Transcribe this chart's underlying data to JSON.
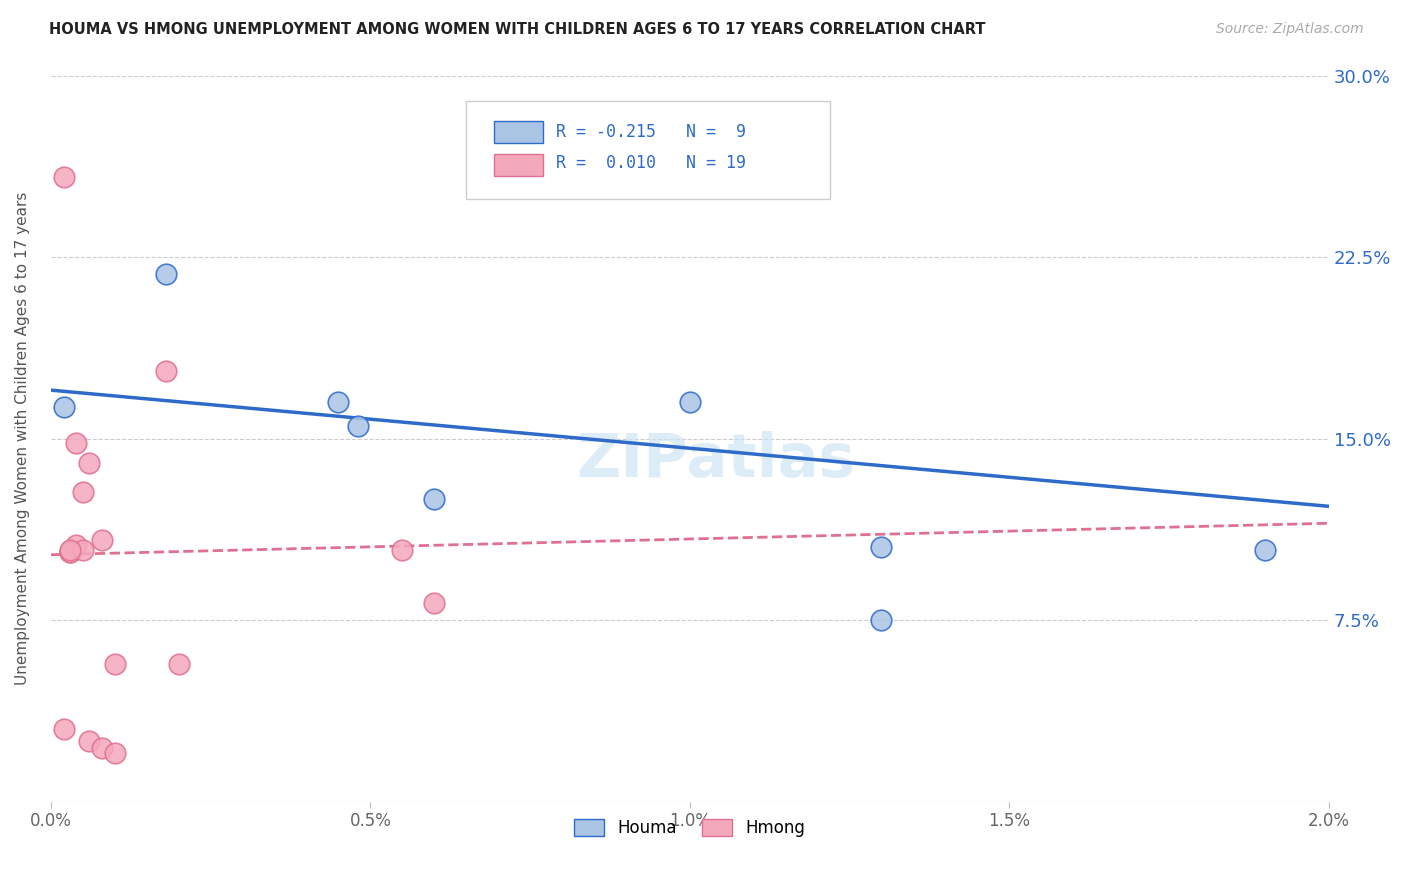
{
  "title": "HOUMA VS HMONG UNEMPLOYMENT AMONG WOMEN WITH CHILDREN AGES 6 TO 17 YEARS CORRELATION CHART",
  "source": "Source: ZipAtlas.com",
  "ylabel": "Unemployment Among Women with Children Ages 6 to 17 years",
  "xmin": 0.0,
  "xmax": 0.02,
  "ymin": 0.0,
  "ymax": 0.3,
  "xtick_labels": [
    "0.0%",
    "0.5%",
    "1.0%",
    "1.5%",
    "2.0%"
  ],
  "xtick_values": [
    0.0,
    0.005,
    0.01,
    0.015,
    0.02
  ],
  "ytick_labels": [
    "7.5%",
    "15.0%",
    "22.5%",
    "30.0%"
  ],
  "ytick_values": [
    0.075,
    0.15,
    0.225,
    0.3
  ],
  "houma_color": "#aac4e4",
  "hmong_color": "#f4a8bc",
  "houma_scatter": [
    [
      0.0002,
      0.163
    ],
    [
      0.0018,
      0.218
    ],
    [
      0.0045,
      0.165
    ],
    [
      0.0048,
      0.155
    ],
    [
      0.006,
      0.125
    ],
    [
      0.01,
      0.165
    ],
    [
      0.013,
      0.105
    ],
    [
      0.019,
      0.104
    ],
    [
      0.013,
      0.075
    ]
  ],
  "hmong_scatter": [
    [
      0.0002,
      0.258
    ],
    [
      0.0018,
      0.178
    ],
    [
      0.0004,
      0.148
    ],
    [
      0.0006,
      0.14
    ],
    [
      0.0005,
      0.128
    ],
    [
      0.0008,
      0.108
    ],
    [
      0.0004,
      0.106
    ],
    [
      0.0003,
      0.103
    ],
    [
      0.0003,
      0.103
    ],
    [
      0.0005,
      0.104
    ],
    [
      0.0003,
      0.104
    ],
    [
      0.006,
      0.082
    ],
    [
      0.0055,
      0.104
    ],
    [
      0.001,
      0.057
    ],
    [
      0.002,
      0.057
    ],
    [
      0.0002,
      0.03
    ],
    [
      0.0006,
      0.025
    ],
    [
      0.0008,
      0.022
    ],
    [
      0.001,
      0.02
    ]
  ],
  "houma_R": -0.215,
  "houma_N": 9,
  "hmong_R": 0.01,
  "hmong_N": 19,
  "houma_line_color": "#2e6bc9",
  "hmong_line_color": "#e07090",
  "houma_line_y0": 0.17,
  "houma_line_y1": 0.122,
  "hmong_line_y0": 0.102,
  "hmong_line_y1": 0.115,
  "watermark": "ZIPatlas",
  "legend_bottom_labels": [
    "Houma",
    "Hmong"
  ]
}
